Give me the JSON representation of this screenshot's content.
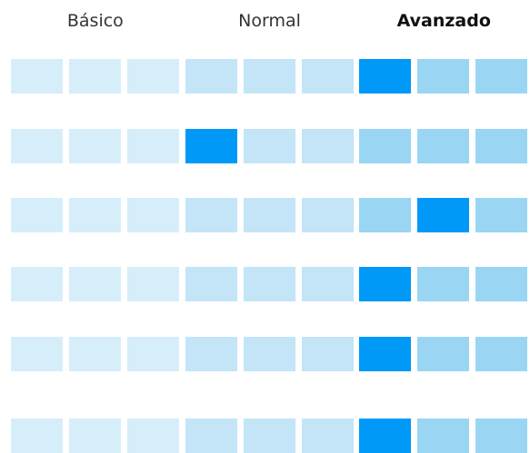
{
  "header": {
    "columns": [
      "Básico",
      "Normal",
      "Avanzado"
    ],
    "active_column": 2
  },
  "grid": {
    "cells_per_column": 3,
    "colors": [
      "#d6eef9",
      "#c3e5f7",
      "#9ad6f3"
    ],
    "selected_color": "#0099f8",
    "rows": [
      {
        "selected": 6
      },
      {
        "selected": 3
      },
      {
        "selected": 7
      },
      {
        "selected": 6
      },
      {
        "selected": 6
      },
      {
        "selected": 6
      }
    ]
  }
}
